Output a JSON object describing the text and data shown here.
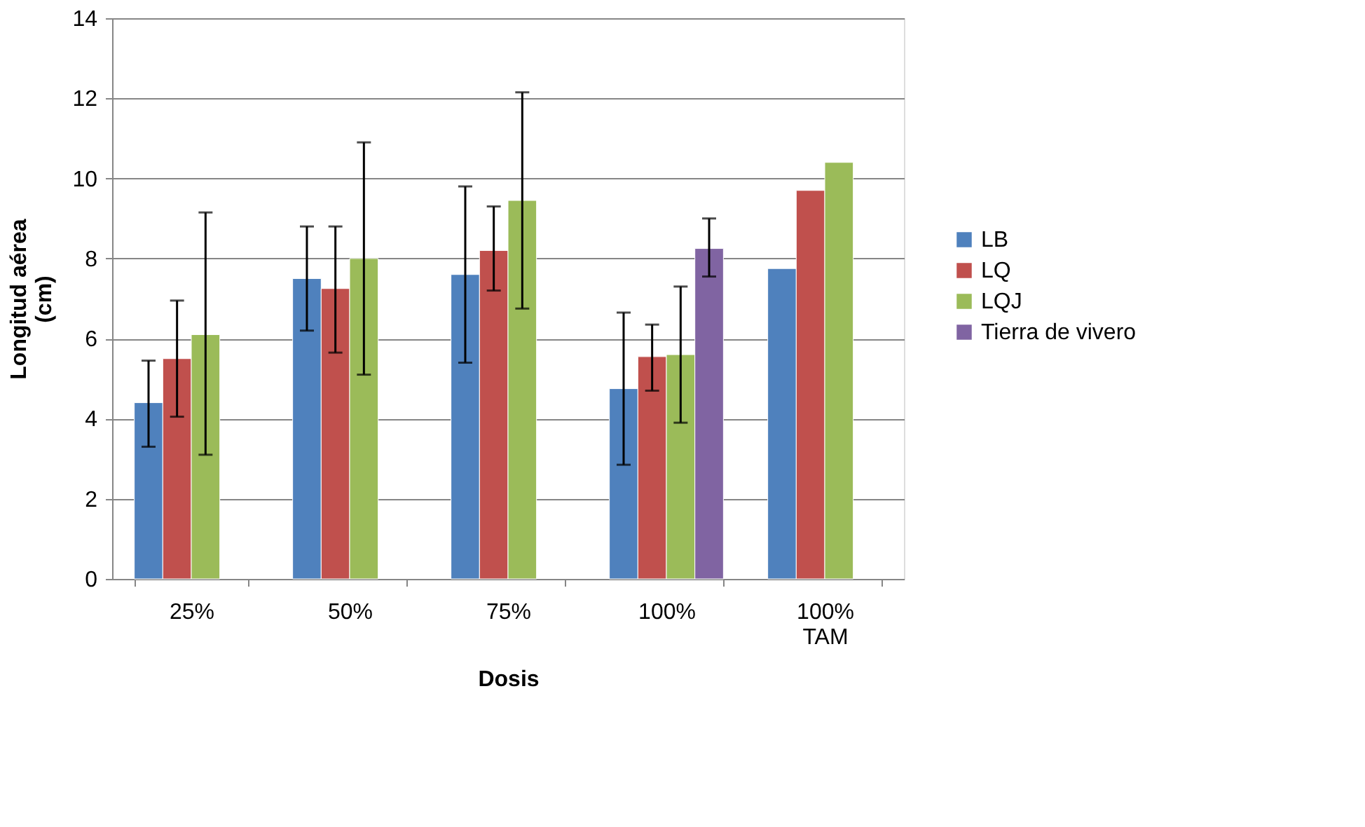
{
  "chart_data": {
    "type": "bar",
    "xlabel": "Dosis",
    "ylabel": "Longitud aérea\n(cm)",
    "categories": [
      "25%",
      "50%",
      "75%",
      "100%",
      "100%\nTAM"
    ],
    "series": [
      {
        "name": "LB",
        "color": "#4f81bd",
        "values": [
          4.4,
          7.5,
          7.6,
          4.75,
          7.75
        ],
        "errors": [
          [
            3.3,
            5.45
          ],
          [
            6.2,
            8.8
          ],
          [
            5.4,
            9.8
          ],
          [
            2.85,
            6.65
          ],
          null
        ]
      },
      {
        "name": "LQ",
        "color": "#c0504d",
        "values": [
          5.5,
          7.25,
          8.2,
          5.55,
          9.7
        ],
        "errors": [
          [
            4.05,
            6.95
          ],
          [
            5.65,
            8.8
          ],
          [
            7.2,
            9.3
          ],
          [
            4.7,
            6.35
          ],
          null
        ]
      },
      {
        "name": "LQJ",
        "color": "#9bbb59",
        "values": [
          6.1,
          8.0,
          9.45,
          5.6,
          10.4
        ],
        "errors": [
          [
            3.1,
            9.15
          ],
          [
            5.1,
            10.9
          ],
          [
            6.75,
            12.15
          ],
          [
            3.9,
            7.3
          ],
          null
        ]
      },
      {
        "name": "Tierra de vivero",
        "color": "#8064a2",
        "values": [
          null,
          null,
          null,
          8.25,
          null
        ],
        "errors": [
          null,
          null,
          null,
          [
            7.55,
            9.0
          ],
          null
        ]
      }
    ],
    "ylim": [
      0,
      14
    ],
    "yticks": [
      0,
      2,
      4,
      6,
      8,
      10,
      12,
      14
    ],
    "grid": "y",
    "legend": "right"
  }
}
